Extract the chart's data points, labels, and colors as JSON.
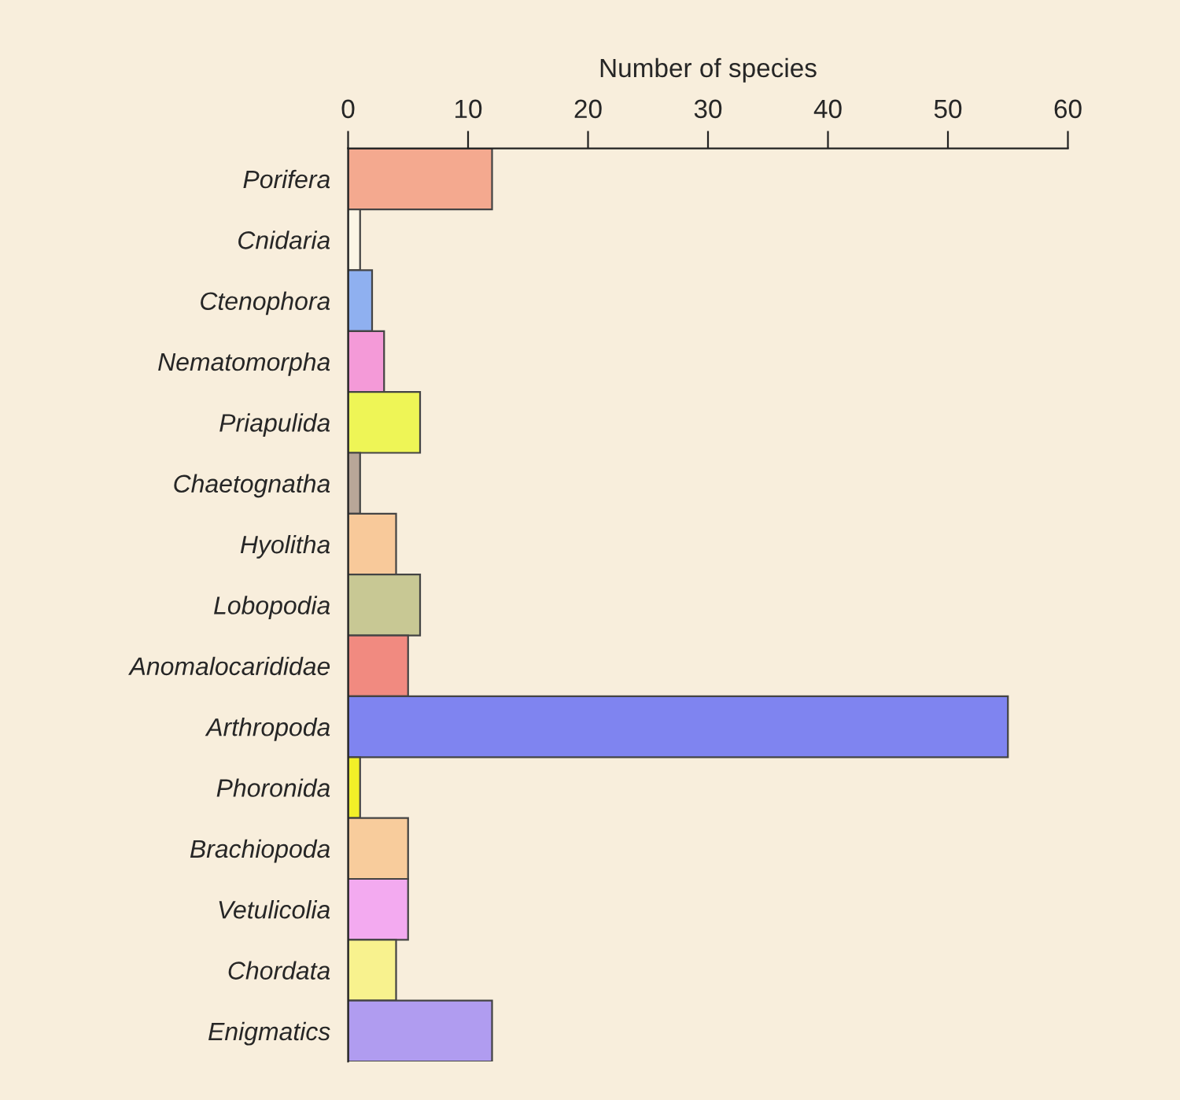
{
  "chart_data": {
    "type": "bar",
    "orientation": "horizontal",
    "xlabel": "Number of species",
    "categories": [
      "Porifera",
      "Cnidaria",
      "Ctenophora",
      "Nematomorpha",
      "Priapulida",
      "Chaetognatha",
      "Hyolitha",
      "Lobopodia",
      "Anomalocarididae",
      "Arthropoda",
      "Phoronida",
      "Brachiopoda",
      "Vetulicolia",
      "Chordata",
      "Enigmatics"
    ],
    "values": [
      12,
      1,
      2,
      3,
      6,
      1,
      4,
      6,
      5,
      55,
      1,
      5,
      5,
      4,
      12
    ],
    "colors": [
      "#f4a98f",
      "#fbf6e6",
      "#8fb0f0",
      "#f49ad8",
      "#eef556",
      "#b8a698",
      "#f8c99a",
      "#c8c894",
      "#f18a80",
      "#7f84f0",
      "#f2f028",
      "#f8cc9c",
      "#f3aaf0",
      "#f8f28e",
      "#b09cf0"
    ],
    "xlim": [
      0,
      60
    ],
    "xticks": [
      0,
      10,
      20,
      30,
      40,
      50,
      60
    ],
    "grid": false,
    "legend": false
  }
}
